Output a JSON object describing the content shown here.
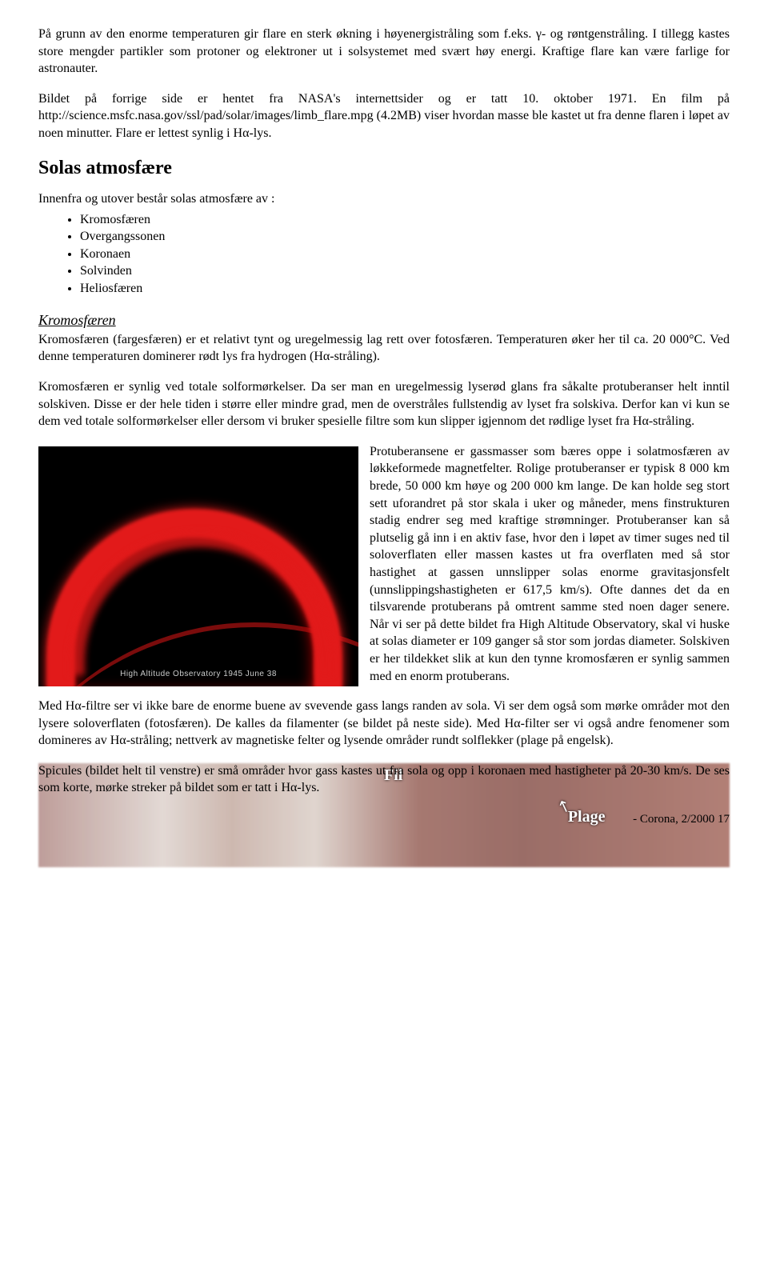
{
  "para1": "På grunn av den enorme temperaturen gir flare en sterk økning i høyenergistråling som f.eks. γ- og røntgenstråling. I tillegg kastes store mengder partikler som protoner og elektroner ut i solsystemet med svært høy energi. Kraftige flare kan være farlige for astronauter.",
  "para2": "Bildet på forrige side er hentet fra NASA's internettsider og er tatt 10. oktober 1971. En film på http://science.msfc.nasa.gov/ssl/pad/solar/images/limb_flare.mpg (4.2MB) viser hvordan masse ble kastet ut fra denne flaren i løpet av noen minutter. Flare er lettest synlig i Hα-lys.",
  "heading_atmos": "Solas atmosfære",
  "intro_atmos": "Innenfra og utover består solas atmosfære av :",
  "layers": {
    "l0": "Kromosfæren",
    "l1": "Overgangssonen",
    "l2": "Koronaen",
    "l3": "Solvinden",
    "l4": "Heliosfæren"
  },
  "heading_kromo": "Kromosfæren",
  "para_kromo1": "Kromosfæren (fargesfæren) er et relativt tynt og uregelmessig lag rett over fotosfæren. Temperaturen øker her til ca. 20 000°C. Ved denne temperaturen dominerer rødt lys fra hydrogen (Hα-stråling).",
  "para_kromo2": "Kromosfæren er synlig ved totale solformørkelser. Da ser man en uregelmessig lyserød glans fra såkalte protuberanser helt inntil solskiven. Disse er der hele tiden i større eller mindre grad, men de overstråles fullstendig av lyset fra solskiva. Derfor kan vi kun se dem ved totale solformørkelser eller dersom vi bruker spesielle filtre som kun slipper igjennom det rødlige lyset fra Hα-stråling.",
  "para_prot": "Protuberansene er gassmasser som bæres oppe i solatmosfæren av løkkeformede magnetfelter. Rolige protuberanser er typisk 8 000 km brede, 50 000 km høye og 200 000 km lange. De kan holde seg stort sett uforandret på stor skala i uker og måneder, mens finstrukturen stadig endrer seg med kraftige strømninger. Protuberanser kan så plutselig gå inn i en aktiv fase, hvor den i løpet av timer suges ned til soloverflaten eller massen kastes ut fra overflaten med så stor hastighet at gassen unnslipper solas enorme gravitasjonsfelt (unnslippingshastigheten er 617,5 km/s). Ofte dannes det da en tilsvarende protuberans på omtrent samme sted noen dager senere. Når vi ser på dette bildet fra High Altitude Observatory, skal vi huske at solas diameter er 109 ganger så stor som jordas diameter. Solskiven er her tildekket slik at kun den tynne kromosfæren er synlig sammen med en enorm protuberans.",
  "para_filter": "Med Hα-filtre ser vi ikke bare de enorme buene av svevende gass langs randen av sola. Vi ser dem også som mørke områder mot den lysere soloverflaten (fotosfæren). De kalles da filamenter (se bildet på neste side). Med Hα-filter ser vi også andre fenomener som domineres av Hα-stråling; nettverk av magnetiske felter og lysende områder rundt solflekker (plage på engelsk).",
  "para_spicules": "Spicules (bildet helt til venstre) er små områder hvor gass kastes ut fra sola og opp i koronaen med hastigheter på 20-30 km/s. De ses som korte, mørke streker på bildet som er tatt i Hα-lys.",
  "image_caption": "High Altitude Observatory    1945 June 38",
  "strip_labels": {
    "filament": "Fil",
    "plage": "Plage"
  },
  "footer": "- Corona, 2/2000    17"
}
